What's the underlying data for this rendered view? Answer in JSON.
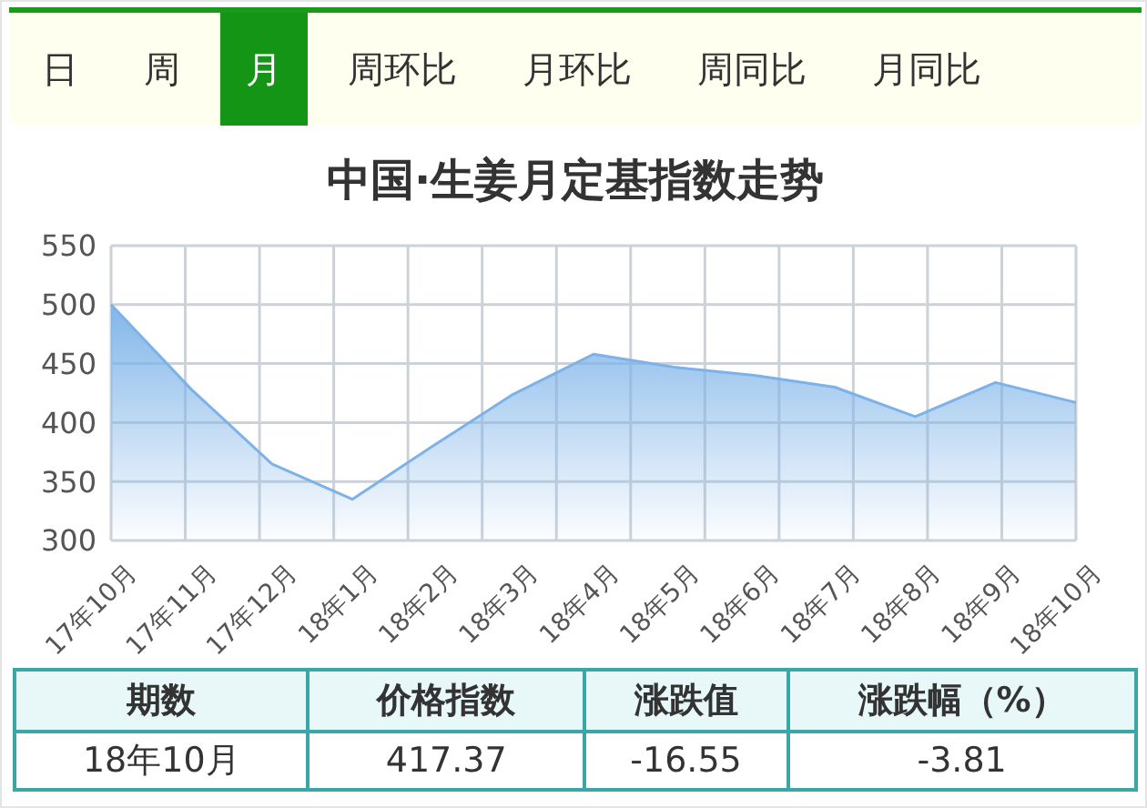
{
  "chart_data": [
    {
      "type": "other",
      "annotations": [
        "日",
        "周",
        "月",
        "周环比",
        "月环比",
        "周同比",
        "月同比"
      ]
    },
    {
      "type": "area",
      "title": "中国·生姜月定基指数走势",
      "categories": [
        "17年10月",
        "17年11月",
        "17年12月",
        "18年1月",
        "18年2月",
        "18年3月",
        "18年4月",
        "18年5月",
        "18年6月",
        "18年7月",
        "18年8月",
        "18年9月",
        "18年10月"
      ],
      "series": [
        {
          "color": "#7cb2e8",
          "values": [
            500,
            428,
            365,
            335,
            380,
            424,
            458,
            447,
            440,
            430,
            405,
            434,
            417
          ]
        }
      ],
      "ylim": [
        300,
        550
      ],
      "yticks": [
        300,
        350,
        400,
        450,
        500,
        550
      ],
      "grid": true,
      "legend": false,
      "marker": "none"
    },
    {
      "type": "other",
      "annotations": [
        "期数",
        "价格指数",
        "涨跌值",
        "涨跌幅（%）",
        "18年10月",
        "417.37",
        "-16.55",
        "-3.81"
      ]
    }
  ]
}
